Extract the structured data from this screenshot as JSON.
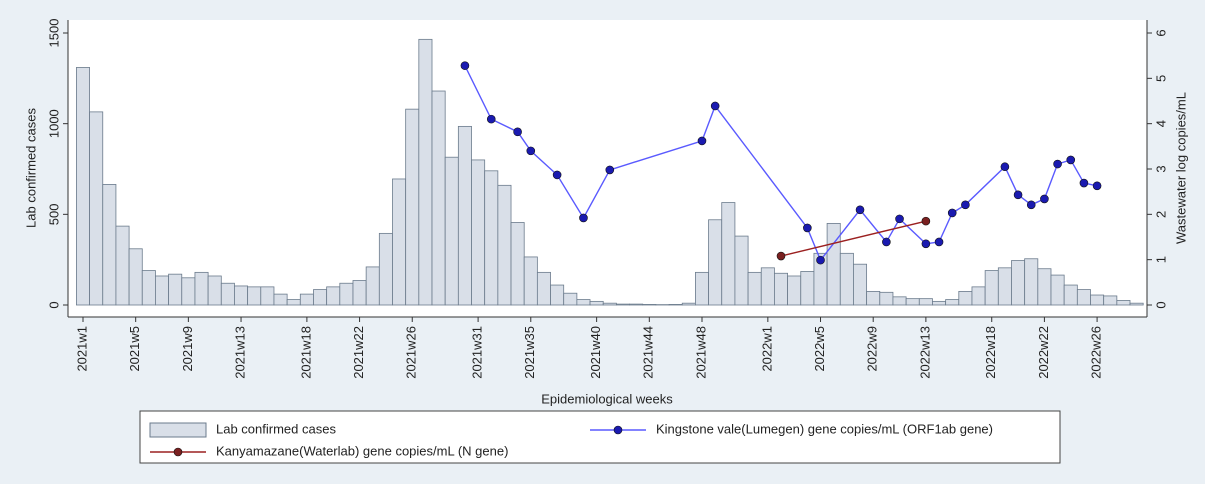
{
  "chart_data": {
    "type": "bar-line",
    "x_label": "Epidemiological weeks",
    "y_label": "Lab confirmed cases",
    "y2_label": "Wastewater log copies/mL",
    "categories": [
      "2021w1",
      null,
      null,
      null,
      "2021w5",
      null,
      null,
      null,
      "2021w9",
      null,
      null,
      null,
      "2021w13",
      null,
      null,
      null,
      null,
      "2021w18",
      null,
      null,
      null,
      "2021w22",
      null,
      null,
      null,
      "2021w26",
      null,
      null,
      null,
      null,
      "2021w31",
      null,
      null,
      null,
      "2021w35",
      null,
      null,
      null,
      null,
      "2021w40",
      null,
      null,
      null,
      "2021w44",
      null,
      null,
      null,
      "2021w48",
      null,
      null,
      null,
      null,
      "2022w1",
      null,
      null,
      null,
      "2022w5",
      null,
      null,
      null,
      "2022w9",
      null,
      null,
      null,
      "2022w13",
      null,
      null,
      null,
      null,
      "2022w18",
      null,
      null,
      null,
      "2022w22",
      null,
      null,
      null,
      "2022w26",
      null,
      null,
      null
    ],
    "ylim": [
      0,
      1500
    ],
    "yticks": [
      0,
      500,
      1000,
      1500
    ],
    "y2lim": [
      0,
      6
    ],
    "y2ticks": [
      0,
      1,
      2,
      3,
      4,
      5,
      6
    ],
    "series": [
      {
        "name": "Lab confirmed cases",
        "kind": "bar",
        "color": "#d9dfe8",
        "edgecolor": "#6b7b8c",
        "values": [
          1310,
          1065,
          665,
          435,
          310,
          190,
          160,
          170,
          150,
          180,
          160,
          120,
          105,
          100,
          100,
          60,
          30,
          60,
          85,
          100,
          120,
          135,
          210,
          395,
          695,
          1080,
          1465,
          1180,
          815,
          985,
          800,
          740,
          660,
          455,
          265,
          180,
          110,
          65,
          30,
          20,
          10,
          5,
          5,
          3,
          2,
          3,
          10,
          180,
          470,
          565,
          380,
          180,
          205,
          175,
          160,
          185,
          285,
          450,
          285,
          225,
          75,
          70,
          45,
          35,
          35,
          20,
          30,
          75,
          100,
          190,
          205,
          245,
          255,
          200,
          165,
          110,
          85,
          55,
          50,
          25,
          10
        ]
      },
      {
        "name": "Kingstone vale(Lumegen) gene copies/mL (ORF1ab gene)",
        "kind": "line",
        "axis": "y2",
        "color": "#5a5aff",
        "marker_color": "#1a1ab0",
        "x": [
          29,
          31,
          33,
          34,
          36,
          38,
          40,
          47,
          48,
          55,
          56,
          59,
          61,
          62,
          64,
          65,
          66,
          67,
          70,
          71,
          72,
          73,
          74,
          75,
          76,
          77
        ],
        "values": [
          5.28,
          4.1,
          3.82,
          3.4,
          2.87,
          1.92,
          2.98,
          3.62,
          4.39,
          1.7,
          0.99,
          2.1,
          1.39,
          1.9,
          1.35,
          1.39,
          2.03,
          2.21,
          3.05,
          2.43,
          2.21,
          2.34,
          3.11,
          3.2,
          2.69,
          2.63
        ]
      },
      {
        "name": "Kanyamazane(Waterlab) gene copies/mL (N gene)",
        "kind": "line",
        "axis": "y2",
        "color": "#9b2020",
        "marker_color": "#7a2020",
        "x": [
          53,
          64
        ],
        "values": [
          1.08,
          1.85
        ]
      }
    ]
  }
}
